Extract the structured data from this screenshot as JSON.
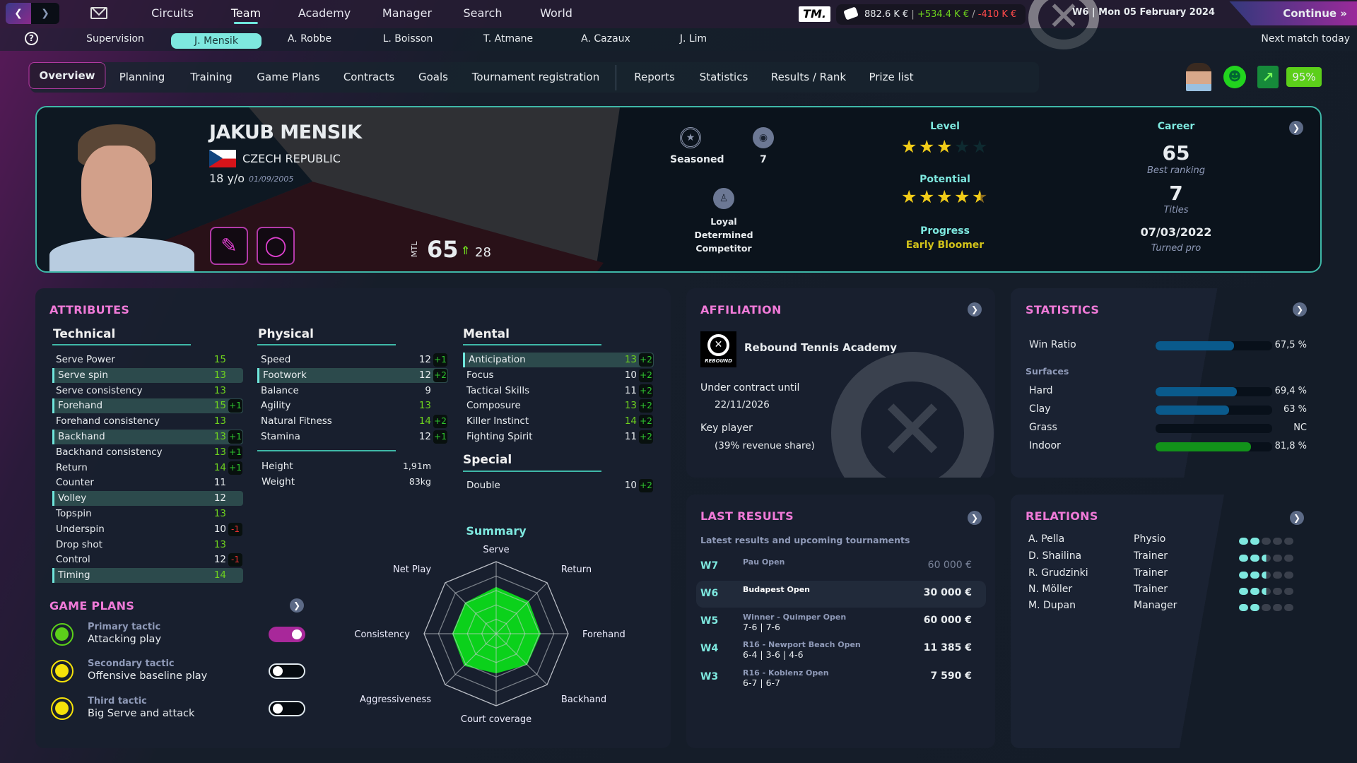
{
  "topbar": {
    "nav": [
      "Circuits",
      "Team",
      "Academy",
      "Manager",
      "Search",
      "World"
    ],
    "active_nav": "Team",
    "logo": "TM.",
    "money": {
      "balance": "882.6 K €",
      "income": "+534.4 K €",
      "expense": "-410 K €"
    },
    "date": "W6 | Mon 05 February 2024",
    "continue_label": "Continue",
    "next_match": "Next match today"
  },
  "subnav": {
    "items": [
      "Supervision",
      "J. Mensik",
      "A. Robbe",
      "L. Boisson",
      "T. Atmane",
      "A. Cazaux",
      "J. Lim"
    ],
    "active": "J. Mensik"
  },
  "tabs": {
    "items": [
      "Overview",
      "Planning",
      "Training",
      "Game Plans",
      "Contracts",
      "Goals",
      "Tournament registration",
      "Reports",
      "Statistics",
      "Results / Rank",
      "Prize list"
    ],
    "active": "Overview",
    "fitness": "95%"
  },
  "player": {
    "name": "JAKUB MENSIK",
    "country": "CZECH REPUBLIC",
    "age": "18 y/o",
    "birthdate": "01/09/2005",
    "mtl_label": "MTL",
    "mtl": "65",
    "mtl_progress": "28",
    "experience": "Seasoned",
    "experience_count": "7",
    "traits": [
      "Loyal",
      "Determined",
      "Competitor"
    ],
    "level_label": "Level",
    "level_stars": 3,
    "potential_label": "Potential",
    "potential_stars": 4.5,
    "progress_label": "Progress",
    "progress": "Early Bloomer",
    "career": {
      "title": "Career",
      "best_ranking": "65",
      "best_ranking_label": "Best ranking",
      "titles": "7",
      "titles_label": "Titles",
      "turned_pro": "07/03/2022",
      "turned_pro_label": "Turned pro"
    }
  },
  "attributes": {
    "title": "ATTRIBUTES",
    "technical": {
      "title": "Technical",
      "rows": [
        {
          "label": "Serve Power",
          "value": 15
        },
        {
          "label": "Serve spin",
          "value": 13,
          "hl": true
        },
        {
          "label": "Serve consistency",
          "value": 13
        },
        {
          "label": "Forehand",
          "value": 15,
          "delta": "+1",
          "hl": true
        },
        {
          "label": "Forehand consistency",
          "value": 13
        },
        {
          "label": "Backhand",
          "value": 13,
          "delta": "+1",
          "hl": true
        },
        {
          "label": "Backhand consistency",
          "value": 13,
          "delta": "+1"
        },
        {
          "label": "Return",
          "value": 14,
          "delta": "+1"
        },
        {
          "label": "Counter",
          "value": 11
        },
        {
          "label": "Volley",
          "value": 12,
          "hl": true
        },
        {
          "label": "Topspin",
          "value": 13
        },
        {
          "label": "Underspin",
          "value": 10,
          "delta": "-1"
        },
        {
          "label": "Drop shot",
          "value": 13
        },
        {
          "label": "Control",
          "value": 12,
          "delta": "-1"
        },
        {
          "label": "Timing",
          "value": 14,
          "hl": true
        }
      ]
    },
    "physical": {
      "title": "Physical",
      "rows": [
        {
          "label": "Speed",
          "value": 12,
          "delta": "+1"
        },
        {
          "label": "Footwork",
          "value": 12,
          "delta": "+2",
          "hl": true
        },
        {
          "label": "Balance",
          "value": 9
        },
        {
          "label": "Agility",
          "value": 13
        },
        {
          "label": "Natural Fitness",
          "value": 14,
          "delta": "+2"
        },
        {
          "label": "Stamina",
          "value": 12,
          "delta": "+1"
        }
      ],
      "height_label": "Height",
      "height": "1,91m",
      "weight_label": "Weight",
      "weight": "83kg"
    },
    "mental": {
      "title": "Mental",
      "rows": [
        {
          "label": "Anticipation",
          "value": 13,
          "delta": "+2",
          "hl": true
        },
        {
          "label": "Focus",
          "value": 10,
          "delta": "+2"
        },
        {
          "label": "Tactical Skills",
          "value": 11,
          "delta": "+2"
        },
        {
          "label": "Composure",
          "value": 13,
          "delta": "+2"
        },
        {
          "label": "Killer Instinct",
          "value": 14,
          "delta": "+2"
        },
        {
          "label": "Fighting Spirit",
          "value": 11,
          "delta": "+2"
        }
      ]
    },
    "special": {
      "title": "Special",
      "rows": [
        {
          "label": "Double",
          "value": 10,
          "delta": "+2"
        }
      ]
    }
  },
  "chart_data": {
    "type": "radar",
    "title": "Summary",
    "categories": [
      "Serve",
      "Return",
      "Forehand",
      "Backhand",
      "Court coverage",
      "Aggressiveness",
      "Consistency",
      "Net Play"
    ],
    "values": [
      0.65,
      0.64,
      0.62,
      0.61,
      0.55,
      0.63,
      0.61,
      0.61
    ],
    "range": [
      0,
      1
    ],
    "rings": 5,
    "fill": "#0bd11b"
  },
  "game_plans": {
    "title": "GAME PLANS",
    "items": [
      {
        "label": "Primary tactic",
        "value": "Attacking play",
        "enabled": true,
        "color": "#5ccf1a"
      },
      {
        "label": "Secondary tactic",
        "value": "Offensive baseline play",
        "enabled": false,
        "color": "#f5e20a"
      },
      {
        "label": "Third tactic",
        "value": "Big Serve and attack",
        "enabled": false,
        "color": "#f5e20a"
      }
    ]
  },
  "affiliation": {
    "title": "AFFILIATION",
    "club": "Rebound Tennis Academy",
    "logo_text": "REBOUND",
    "contract_label": "Under contract until",
    "contract_date": "22/11/2026",
    "role": "Key player",
    "revenue": "(39% revenue share)"
  },
  "statistics": {
    "title": "STATISTICS",
    "win_ratio_label": "Win Ratio",
    "win_ratio": "67,5 %",
    "win_ratio_pct": 67.5,
    "surfaces_label": "Surfaces",
    "surfaces": [
      {
        "label": "Hard",
        "value": "69,4 %",
        "pct": 69.4,
        "color": "#0a5a8c"
      },
      {
        "label": "Clay",
        "value": "63 %",
        "pct": 63,
        "color": "#0a5a8c"
      },
      {
        "label": "Grass",
        "value": "NC",
        "pct": 0,
        "color": "#0a5a8c"
      },
      {
        "label": "Indoor",
        "value": "81,8 %",
        "pct": 81.8,
        "color": "#12921a"
      }
    ]
  },
  "last_results": {
    "title": "LAST RESULTS",
    "subtitle": "Latest results and upcoming tournaments",
    "rows": [
      {
        "week": "W7",
        "event": "Pau Open",
        "score": "",
        "prize": "60 000 €",
        "upcoming": true
      },
      {
        "week": "W6",
        "event": "Budapest Open",
        "score": "",
        "prize": "30 000 €",
        "current": true
      },
      {
        "week": "W5",
        "event": "Winner - Quimper Open",
        "score": "7-6 | 7-6",
        "prize": "60 000 €"
      },
      {
        "week": "W4",
        "event": "R16 - Newport Beach Open",
        "score": "6-4 | 3-6 | 4-6",
        "prize": "11 385 €"
      },
      {
        "week": "W3",
        "event": "R16 - Koblenz Open",
        "score": "6-7 | 6-7",
        "prize": "7 590 €"
      }
    ]
  },
  "relations": {
    "title": "RELATIONS",
    "rows": [
      {
        "name": "A. Pella",
        "role": "Physio",
        "level": 2
      },
      {
        "name": "D. Shailina",
        "role": "Trainer",
        "level": 2.5
      },
      {
        "name": "R. Grudzinki",
        "role": "Trainer",
        "level": 2.5
      },
      {
        "name": "N. Möller",
        "role": "Trainer",
        "level": 2.5
      },
      {
        "name": "M. Dupan",
        "role": "Manager",
        "level": 2
      }
    ]
  },
  "colors": {
    "accent": "#7ee8df",
    "section_title": "#f07ad8",
    "positive": "#6ed21e",
    "negative": "#e83030",
    "card_border": "#3fb8a8"
  }
}
